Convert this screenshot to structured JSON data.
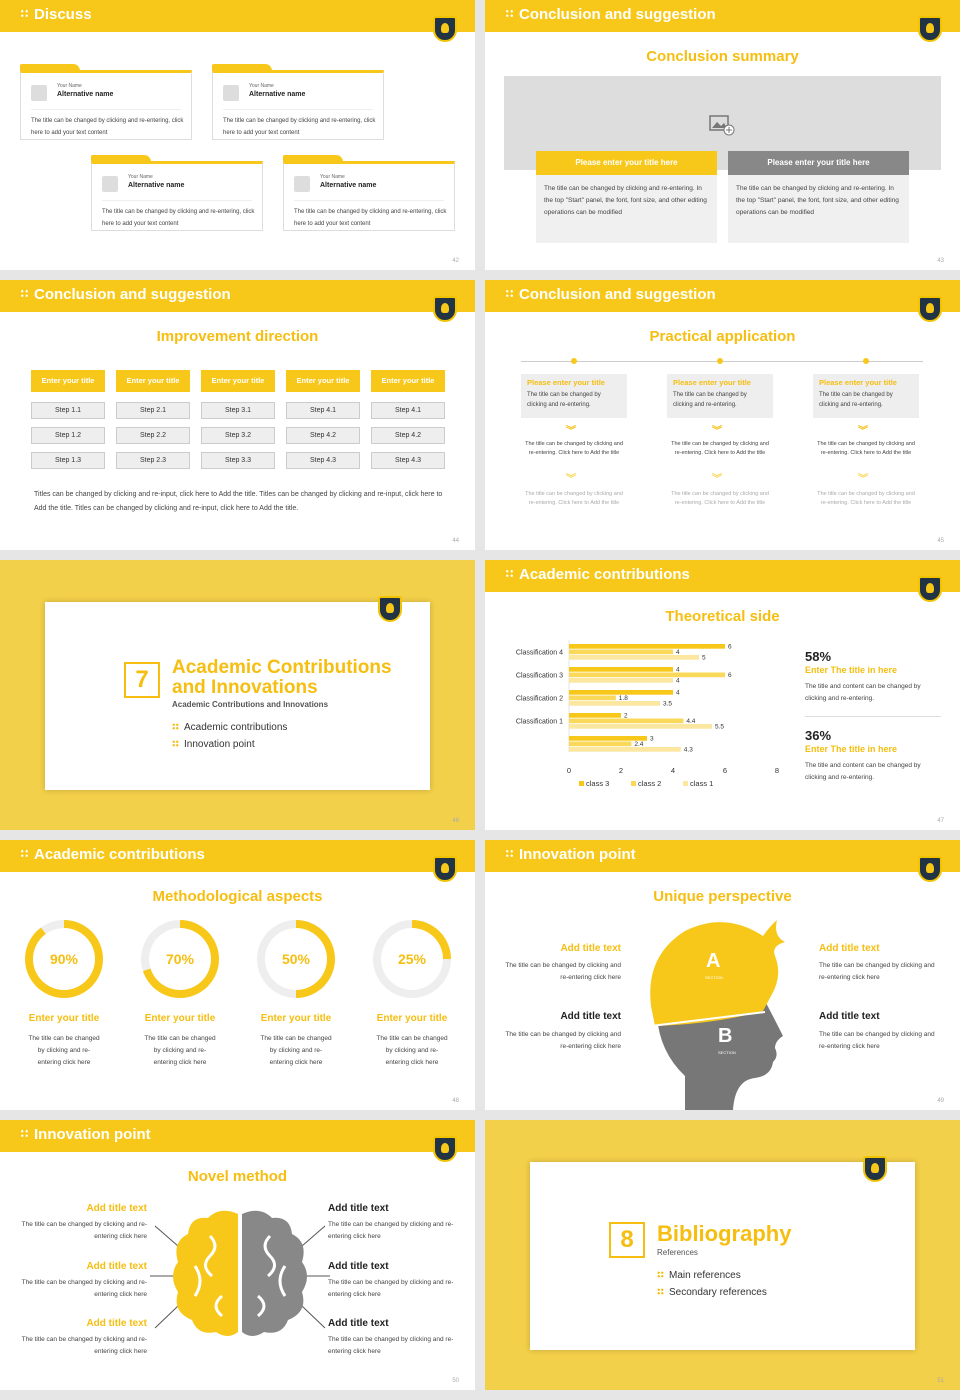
{
  "s42": {
    "title": "Discuss",
    "num": "42",
    "cards": [
      {
        "yn": "Your Name",
        "an": "Alternative name",
        "tx": "The title can be changed by clicking and re-entering, click here to add your text content"
      },
      {
        "yn": "Your Name",
        "an": "Alternative name",
        "tx": "The title can be changed by clicking and re-entering, click here to add your text content"
      },
      {
        "yn": "Your Name",
        "an": "Alternative name",
        "tx": "The title can be changed by clicking and re-entering, click here to add your text content"
      },
      {
        "yn": "Your Name",
        "an": "Alternative name",
        "tx": "The title can be changed by clicking and re-entering, click here to add your text content"
      }
    ]
  },
  "s43": {
    "title": "Conclusion and suggestion",
    "num": "43",
    "sub": "Conclusion summary",
    "b1": "Please enter your title here",
    "b2": "Please enter your title here",
    "t1": "The title can be changed by clicking and re-entering. In the top \"Start\" panel, the font, font size, and other editing operations can be modified",
    "t2": "The title can be changed by clicking and re-entering. In the top \"Start\" panel, the font, font size, and other editing operations can be modified"
  },
  "s44": {
    "title": "Conclusion and suggestion",
    "num": "44",
    "sub": "Improvement direction",
    "cols": [
      {
        "h": "Enter your title",
        "steps": [
          "Step 1.1",
          "Step 1.2",
          "Step 1.3"
        ]
      },
      {
        "h": "Enter your title",
        "steps": [
          "Step 2.1",
          "Step 2.2",
          "Step 2.3"
        ]
      },
      {
        "h": "Enter your title",
        "steps": [
          "Step 3.1",
          "Step 3.2",
          "Step 3.3"
        ]
      },
      {
        "h": "Enter your title",
        "steps": [
          "Step 4.1",
          "Step 4.2",
          "Step 4.3"
        ]
      },
      {
        "h": "Enter your title",
        "steps": [
          "Step 4.1",
          "Step 4.2",
          "Step 4.3"
        ]
      }
    ],
    "note": "Titles can be changed by clicking and re-input, click here to Add the title. Titles can be changed by clicking and re-input, click here to Add the title. Titles can be changed by clicking and re-input, click here to Add the title."
  },
  "s45": {
    "title": "Conclusion and suggestion",
    "num": "45",
    "sub": "Practical application",
    "cols": [
      {
        "h": "Please enter your title",
        "d": "The title can be changed by clicking and re-entering.",
        "a": "The title can be changed by clicking and re-entering. Click here to Add the title",
        "b": "The title can be changed by clicking and re-entering. Click here to Add the title"
      },
      {
        "h": "Please enter your title",
        "d": "The title can be changed by clicking and re-entering.",
        "a": "The title can be changed by clicking and re-entering. Click here to Add the title",
        "b": "The title can be changed by clicking and re-entering. Click here to Add the title"
      },
      {
        "h": "Please enter your title",
        "d": "The title can be changed by clicking and re-entering.",
        "a": "The title can be changed by clicking and re-entering. Click here to Add the title",
        "b": "The title can be changed by clicking and re-entering. Click here to Add the title"
      }
    ]
  },
  "s46": {
    "num": "46",
    "n": "7",
    "t1": "Academic Contributions",
    "t2": "and Innovations",
    "sub": "Academic Contributions and Innovations",
    "i1": "Academic contributions",
    "i2": "Innovation point"
  },
  "s47": {
    "title": "Academic contributions",
    "num": "47",
    "sub": "Theoretical side",
    "p1": "58%",
    "h1": "Enter The title in here",
    "d1": "The title and content can be changed by clicking and re-entering.",
    "p2": "36%",
    "h2": "Enter The title in here",
    "d2": "The title and content can be changed by clicking and re-entering."
  },
  "s48": {
    "title": "Academic contributions",
    "num": "48",
    "sub": "Methodological aspects",
    "items": [
      {
        "p": "90%",
        "v": 90,
        "h": "Enter your title",
        "d": "The title can be changed by clicking and re-entering click here"
      },
      {
        "p": "70%",
        "v": 70,
        "h": "Enter your title",
        "d": "The title can be changed by clicking and re-entering click here"
      },
      {
        "p": "50%",
        "v": 50,
        "h": "Enter your title",
        "d": "The title can be changed by clicking and re-entering click here"
      },
      {
        "p": "25%",
        "v": 25,
        "h": "Enter your title",
        "d": "The title can be changed by clicking and re-entering click here"
      }
    ]
  },
  "s49": {
    "title": "Innovation point",
    "num": "49",
    "sub": "Unique perspective",
    "l1": "Add title text",
    "l2": "Add title text",
    "r1": "Add title text",
    "r2": "Add title text",
    "d": "The title can be changed by clicking and re-entering click here",
    "a": "A",
    "b": "B",
    "sec": "SECTION"
  },
  "s50": {
    "title": "Innovation point",
    "num": "50",
    "sub": "Novel method",
    "t": "Add title text",
    "d": "The title can be changed by clicking and re-entering click here"
  },
  "s51": {
    "num": "51",
    "n": "8",
    "t": "Bibliography",
    "sub": "References",
    "i1": "Main references",
    "i2": "Secondary references"
  },
  "chart_data": {
    "type": "bar",
    "categories": [
      "Classification 4",
      "Classification 3",
      "Classification 2",
      "Classification 1",
      ""
    ],
    "series": [
      {
        "name": "class 3",
        "values": [
          6,
          4,
          4,
          2,
          3
        ]
      },
      {
        "name": "class 2",
        "values": [
          4,
          6,
          1.8,
          4.4,
          2.4
        ]
      },
      {
        "name": "class 1",
        "values": [
          5,
          4,
          3.5,
          5.5,
          4.3
        ]
      }
    ],
    "xlim": [
      0,
      8
    ],
    "xticks": [
      "0",
      "2",
      "4",
      "6",
      "8"
    ],
    "colors": [
      "#f7c81a",
      "#f9d85a",
      "#fbe7a0"
    ]
  }
}
